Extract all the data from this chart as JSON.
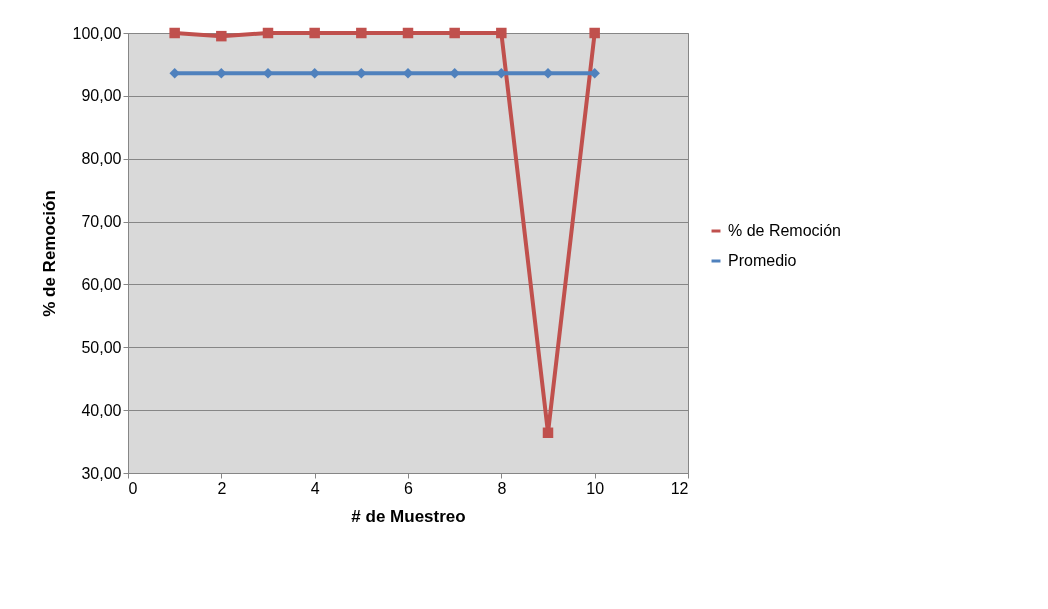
{
  "chart_data": {
    "type": "line",
    "xlabel": "# de Muestreo",
    "ylabel": "% de Remoción",
    "x": [
      1,
      2,
      3,
      4,
      5,
      6,
      7,
      8,
      9,
      10
    ],
    "series": [
      {
        "name": "% de Remoción",
        "color": "#c0504d",
        "marker": "square",
        "values": [
          100,
          99.5,
          100,
          100,
          100,
          100,
          100,
          100,
          36.4,
          100
        ]
      },
      {
        "name": "Promedio",
        "color": "#4f81bd",
        "marker": "diamond",
        "values": [
          93.6,
          93.6,
          93.6,
          93.6,
          93.6,
          93.6,
          93.6,
          93.6,
          93.6,
          93.6
        ]
      }
    ],
    "xlim": [
      0,
      12
    ],
    "xticks": [
      0,
      2,
      4,
      6,
      8,
      10,
      12
    ],
    "ylim": [
      30,
      100
    ],
    "yticks": [
      {
        "value": 30,
        "label": "30,00"
      },
      {
        "value": 40,
        "label": "40,00"
      },
      {
        "value": 50,
        "label": "50,00"
      },
      {
        "value": 60,
        "label": "60,00"
      },
      {
        "value": 70,
        "label": "70,00"
      },
      {
        "value": 80,
        "label": "80,00"
      },
      {
        "value": 90,
        "label": "90,00"
      },
      {
        "value": 100,
        "label": "100,00"
      }
    ],
    "grid": "y",
    "legend": "right"
  }
}
